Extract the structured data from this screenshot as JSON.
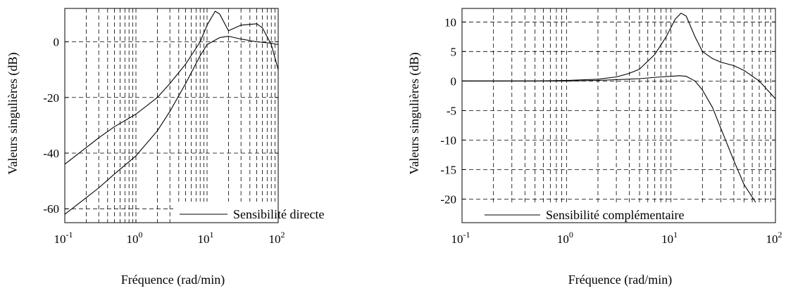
{
  "colors": {
    "line": "#000000",
    "grid": "#000000",
    "background": "#ffffff"
  },
  "chart_data": [
    {
      "type": "line",
      "xlabel": "Fréquence (rad/min)",
      "ylabel": "Valeurs singulières (dB)",
      "xscale": "log",
      "xlim": [
        0.1,
        100
      ],
      "ylim": [
        -65,
        12
      ],
      "x_ticks": [
        {
          "base": "10",
          "exp": "-1"
        },
        {
          "base": "10",
          "exp": "0"
        },
        {
          "base": "10",
          "exp": "1"
        },
        {
          "base": "10",
          "exp": "2"
        }
      ],
      "y_ticks": [
        "-60",
        "-40",
        "-20",
        "0"
      ],
      "grid": true,
      "legend_position": "bottom-right",
      "legend": "Sensibilité directe",
      "series": [
        {
          "x": [
            0.1,
            0.2,
            0.3,
            0.5,
            1,
            2,
            3,
            5,
            8,
            10,
            13,
            15,
            20,
            30,
            50,
            60,
            80,
            100
          ],
          "y": [
            -44,
            -38,
            -34.5,
            -30.5,
            -26,
            -20,
            -15,
            -8,
            0,
            6,
            11,
            10,
            4,
            6,
            6.5,
            5,
            -1,
            -10
          ]
        },
        {
          "x": [
            0.1,
            0.2,
            0.3,
            0.5,
            1,
            2,
            3,
            5,
            8,
            10,
            15,
            20,
            30,
            50,
            80,
            100
          ],
          "y": [
            -62,
            -56,
            -52.5,
            -47.5,
            -41,
            -32,
            -25,
            -15,
            -5,
            -1,
            1.5,
            2,
            1,
            0,
            -0.5,
            -1
          ]
        }
      ]
    },
    {
      "type": "line",
      "xlabel": "Fréquence (rad/min)",
      "ylabel": "Valeurs singulières (dB)",
      "xscale": "log",
      "xlim": [
        0.1,
        100
      ],
      "ylim": [
        -24,
        12.3
      ],
      "x_ticks": [
        {
          "base": "10",
          "exp": "-1"
        },
        {
          "base": "10",
          "exp": "0"
        },
        {
          "base": "10",
          "exp": "1"
        },
        {
          "base": "10",
          "exp": "2"
        }
      ],
      "y_ticks": [
        "-20",
        "-15",
        "-10",
        "-5",
        "0",
        "5",
        "10"
      ],
      "grid": true,
      "legend_position": "bottom-right",
      "legend": "Sensibilité complémentaire",
      "series": [
        {
          "x": [
            0.1,
            0.5,
            1,
            2,
            3,
            4,
            5,
            7,
            9,
            11,
            12.5,
            14,
            17,
            20,
            25,
            30,
            40,
            50,
            70,
            100
          ],
          "y": [
            0,
            0,
            0.1,
            0.3,
            0.7,
            1.3,
            2,
            4.5,
            7.5,
            10.5,
            11.5,
            11,
            7.5,
            5,
            3.8,
            3.2,
            2.6,
            1.8,
            0,
            -3
          ]
        },
        {
          "x": [
            0.1,
            1,
            2,
            5,
            8,
            10,
            12,
            14,
            17,
            20,
            25,
            30,
            40,
            50,
            70,
            100
          ],
          "y": [
            0,
            0,
            0.1,
            0.4,
            0.7,
            0.8,
            0.9,
            0.8,
            0,
            -1.5,
            -4.5,
            -8,
            -13.5,
            -17.5,
            -21.5,
            -23.8
          ]
        }
      ]
    }
  ]
}
